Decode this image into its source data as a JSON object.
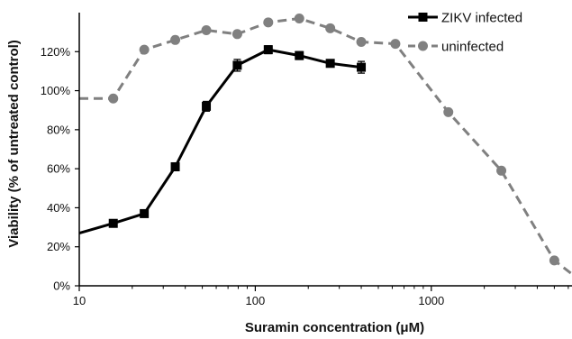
{
  "chart_data": {
    "type": "line",
    "xlabel": "Suramin concentration (μM)",
    "ylabel": "Viability (% of untreated control)",
    "x_scale": "log",
    "xlim": [
      10,
      6300
    ],
    "ylim": [
      0,
      140
    ],
    "x_ticks": [
      10,
      100,
      1000
    ],
    "x_tick_labels": [
      "10",
      "100",
      "1000"
    ],
    "y_ticks": [
      0,
      20,
      40,
      60,
      80,
      100,
      120
    ],
    "y_tick_labels": [
      "0%",
      "20%",
      "40%",
      "60%",
      "80%",
      "100%",
      "120%"
    ],
    "grid": false,
    "legend_position": "top-right",
    "series": [
      {
        "name": "ZIKV infected",
        "color": "#000000",
        "line_style": "solid",
        "marker": "square",
        "error_bars": true,
        "x": [
          10,
          15.6,
          23.4,
          35.1,
          52.7,
          79,
          118.5,
          177.8,
          266.7,
          400
        ],
        "y": [
          27,
          32,
          37,
          61,
          92,
          113,
          121,
          118,
          114,
          112
        ],
        "error": [
          0,
          1.5,
          1.5,
          2,
          2.5,
          3,
          2,
          2,
          1.5,
          3
        ]
      },
      {
        "name": "uninfected",
        "color": "#808080",
        "line_style": "dashed",
        "marker": "circle",
        "error_bars": false,
        "x": [
          10,
          15.6,
          23.4,
          35.1,
          52.7,
          79,
          118.5,
          177.8,
          266.7,
          400,
          625,
          1250,
          2500,
          5000,
          6300
        ],
        "y": [
          96,
          96,
          121,
          126,
          131,
          129,
          135,
          137,
          132,
          125,
          124,
          89,
          59,
          13,
          6
        ]
      }
    ]
  }
}
